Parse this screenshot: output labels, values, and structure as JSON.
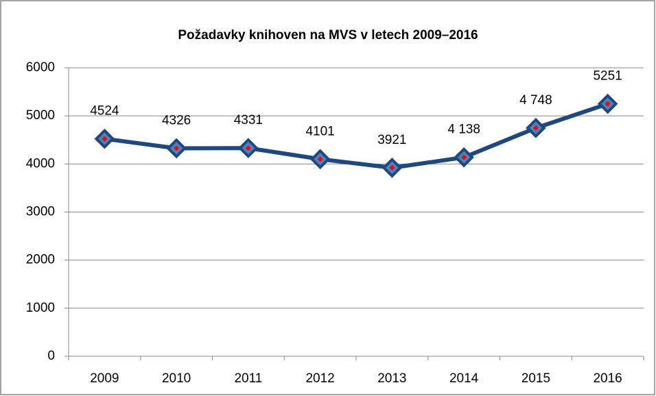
{
  "chart_data": {
    "type": "line",
    "title": "Požadavky  knihoven na MVS v letech 2009–2016",
    "categories": [
      "2009",
      "2010",
      "2011",
      "2012",
      "2013",
      "2014",
      "2015",
      "2016"
    ],
    "values": [
      4524,
      4326,
      4331,
      4101,
      3921,
      4138,
      4748,
      5251
    ],
    "value_labels": [
      "4524",
      "4326",
      "4331",
      "4101",
      "3921",
      "4 138",
      "4 748",
      "5251"
    ],
    "color": "#1f497d",
    "marker_color": "#ff0000",
    "ylim": [
      0,
      6000
    ],
    "yticks": [
      0,
      1000,
      2000,
      3000,
      4000,
      5000,
      6000
    ],
    "grid": true
  }
}
